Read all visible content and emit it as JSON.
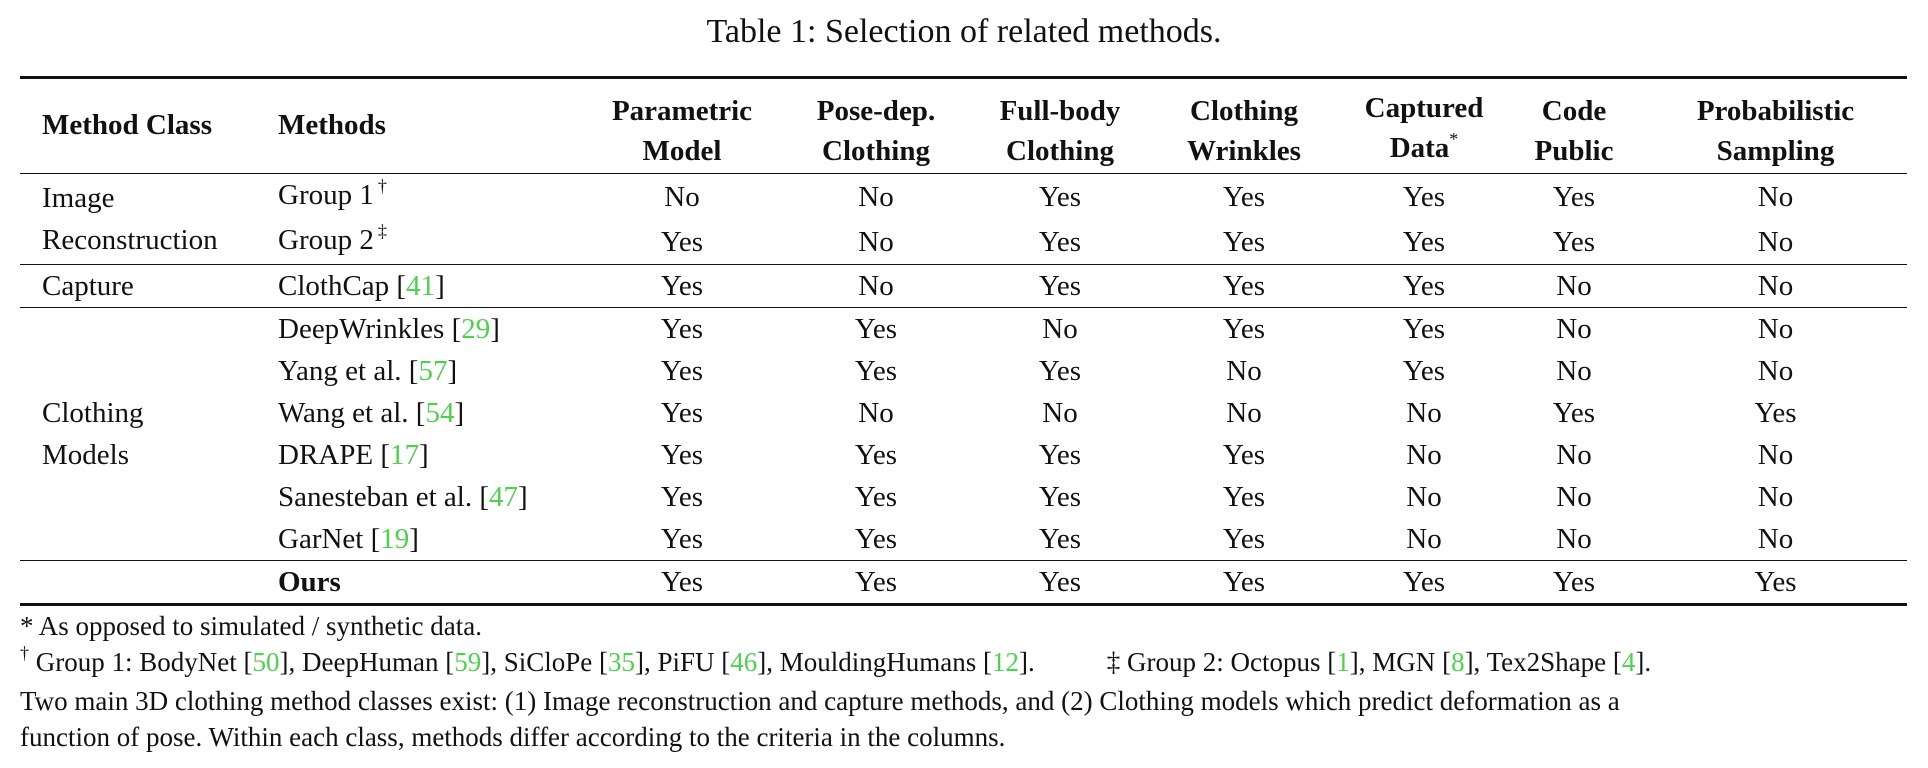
{
  "caption": "Table 1: Selection of related methods.",
  "columns": [
    {
      "line1": "Method Class",
      "line2": ""
    },
    {
      "line1": "Methods",
      "line2": ""
    },
    {
      "line1": "Parametric",
      "line2": "Model"
    },
    {
      "line1": "Pose-dep.",
      "line2": "Clothing"
    },
    {
      "line1": "Full-body",
      "line2": "Clothing"
    },
    {
      "line1": "Clothing",
      "line2": "Wrinkles"
    },
    {
      "line1": "Captured",
      "line2": "Data",
      "mark": "*"
    },
    {
      "line1": "Code",
      "line2": "Public"
    },
    {
      "line1": "Probabilistic",
      "line2": "Sampling"
    }
  ],
  "groups": [
    {
      "class_lines": [
        "Image",
        "Reconstruction"
      ],
      "rows": [
        {
          "name": "Group 1",
          "mark": "†",
          "ref": "",
          "values": [
            "No",
            "No",
            "Yes",
            "Yes",
            "Yes",
            "Yes",
            "No"
          ]
        },
        {
          "name": "Group 2",
          "mark": "‡",
          "ref": "",
          "values": [
            "Yes",
            "No",
            "Yes",
            "Yes",
            "Yes",
            "Yes",
            "No"
          ]
        }
      ]
    },
    {
      "class_lines": [
        "Capture"
      ],
      "rows": [
        {
          "name": "ClothCap",
          "ref": "41",
          "values": [
            "Yes",
            "No",
            "Yes",
            "Yes",
            "Yes",
            "No",
            "No"
          ]
        }
      ]
    },
    {
      "class_lines": [
        "Clothing",
        "Models"
      ],
      "rows": [
        {
          "name": "DeepWrinkles",
          "ref": "29",
          "values": [
            "Yes",
            "Yes",
            "No",
            "Yes",
            "Yes",
            "No",
            "No"
          ]
        },
        {
          "name": "Yang et al.",
          "ref": "57",
          "values": [
            "Yes",
            "Yes",
            "Yes",
            "No",
            "Yes",
            "No",
            "No"
          ]
        },
        {
          "name": "Wang et al.",
          "ref": "54",
          "values": [
            "Yes",
            "No",
            "No",
            "No",
            "No",
            "Yes",
            "Yes"
          ]
        },
        {
          "name": "DRAPE",
          "ref": "17",
          "values": [
            "Yes",
            "Yes",
            "Yes",
            "Yes",
            "No",
            "No",
            "No"
          ]
        },
        {
          "name": "Sanesteban et al.",
          "ref": "47",
          "values": [
            "Yes",
            "Yes",
            "Yes",
            "Yes",
            "No",
            "No",
            "No"
          ]
        },
        {
          "name": "GarNet",
          "ref": "19",
          "values": [
            "Yes",
            "Yes",
            "Yes",
            "Yes",
            "No",
            "No",
            "No"
          ]
        }
      ]
    },
    {
      "class_lines": [],
      "rows": [
        {
          "name": "Ours",
          "bold": true,
          "ref": "",
          "values": [
            "Yes",
            "Yes",
            "Yes",
            "Yes",
            "Yes",
            "Yes",
            "Yes"
          ]
        }
      ]
    }
  ],
  "notes": {
    "star": "* As opposed to simulated / synthetic data.",
    "group1_mark": "†",
    "group1_label": " Group 1: ",
    "group1_refs": [
      {
        "name": "BodyNet",
        "ref": "50"
      },
      {
        "name": "DeepHuman",
        "ref": "59"
      },
      {
        "name": "SiCloPe",
        "ref": "35"
      },
      {
        "name": "PiFU",
        "ref": "46"
      },
      {
        "name": "MouldingHumans",
        "ref": "12"
      }
    ],
    "group2_label": "‡ Group 2: ",
    "group2_refs": [
      {
        "name": "Octopus",
        "ref": "1"
      },
      {
        "name": "MGN",
        "ref": "8"
      },
      {
        "name": "Tex2Shape",
        "ref": "4"
      }
    ],
    "description_line1": "Two main 3D clothing method classes exist: (1) Image reconstruction and capture methods, and (2) Clothing models which predict deformation as a",
    "description_line2": "function of pose. Within each class, methods differ according to the criteria in the columns."
  }
}
